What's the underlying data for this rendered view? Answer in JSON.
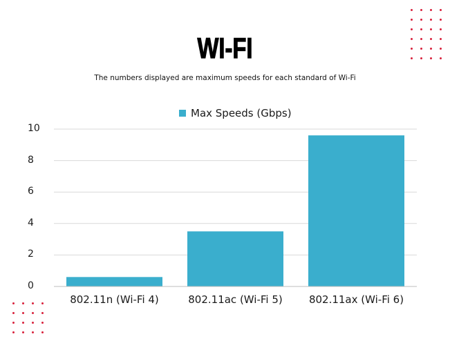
{
  "header": {
    "title": "WI-FI",
    "subtitle": "The numbers displayed are maximum speeds for each standard of Wi-Fi"
  },
  "legend": {
    "items": [
      {
        "label": "Max Speeds (Gbps)",
        "color": "#3aaecd"
      }
    ]
  },
  "decorations": {
    "dot_color": "#d8203b",
    "top_right_grid": {
      "cols": 4,
      "rows": 6
    },
    "bottom_left_grid": {
      "cols": 4,
      "rows": 4
    }
  },
  "y_ticks": [
    "0",
    "2",
    "4",
    "6",
    "8",
    "10"
  ],
  "x_labels": [
    "802.11n (Wi-Fi 4)",
    "802.11ac (Wi-Fi 5)",
    "802.11ax (Wi-Fi 6)"
  ],
  "chart_data": {
    "type": "bar",
    "title": "WI-FI",
    "subtitle": "The numbers displayed are maximum speeds for each standard of Wi-Fi",
    "categories": [
      "802.11n (Wi-Fi 4)",
      "802.11ac (Wi-Fi 5)",
      "802.11ax (Wi-Fi 6)"
    ],
    "series": [
      {
        "name": "Max Speeds (Gbps)",
        "values": [
          0.6,
          3.5,
          9.6
        ],
        "color": "#3aaecd"
      }
    ],
    "xlabel": "",
    "ylabel": "",
    "ylim": [
      0,
      10
    ],
    "yticks": [
      0,
      2,
      4,
      6,
      8,
      10
    ],
    "grid": true,
    "legend_position": "top"
  }
}
